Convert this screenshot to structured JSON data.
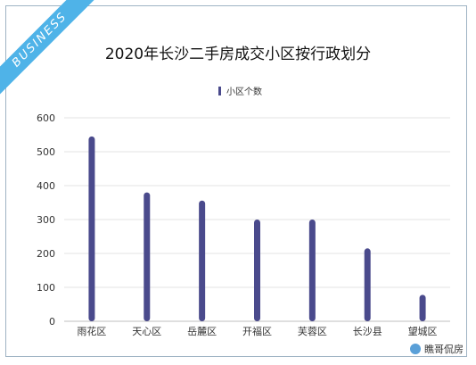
{
  "banner": {
    "text": "BUSINESS",
    "color": "#4fb3e8"
  },
  "watermark": {
    "text": "瞧哥侃房",
    "icon": "wechat-icon"
  },
  "chart_data": {
    "type": "bar",
    "title": "2020年长沙二手房成交小区按行政划分",
    "xlabel": "",
    "ylabel": "",
    "ylim": [
      0,
      600
    ],
    "yticks": [
      0,
      100,
      200,
      300,
      400,
      500,
      600
    ],
    "grid": true,
    "legend_position": "top-center",
    "categories": [
      "雨花区",
      "天心区",
      "岳麓区",
      "开福区",
      "芙蓉区",
      "长沙县",
      "望城区"
    ],
    "series": [
      {
        "name": "小区个数",
        "color": "#4a4a8c",
        "values": [
          545,
          380,
          356,
          300,
          300,
          215,
          78
        ]
      }
    ]
  }
}
